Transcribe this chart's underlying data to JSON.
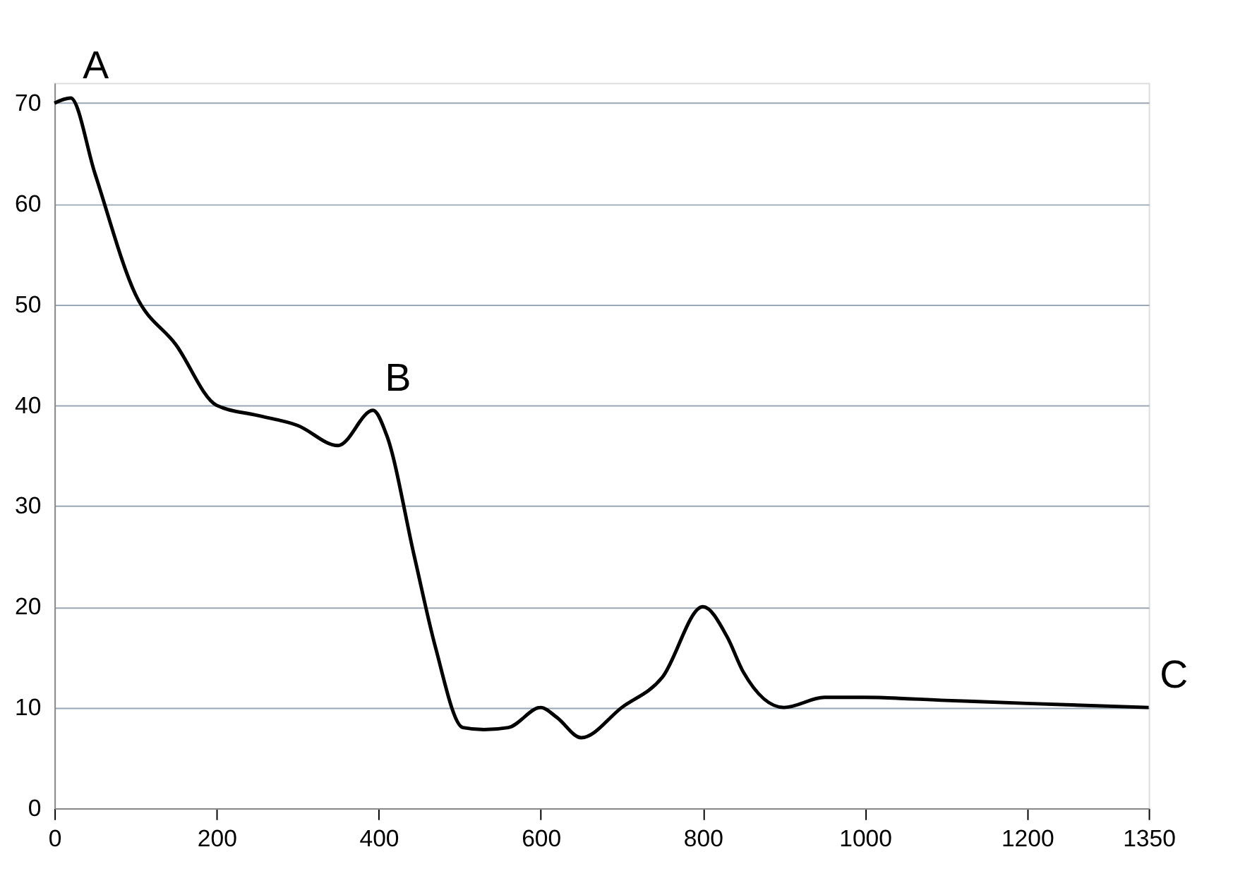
{
  "chart_data": {
    "type": "line",
    "x": [
      0,
      20,
      50,
      100,
      150,
      200,
      250,
      300,
      350,
      393,
      410,
      444,
      470,
      504,
      530,
      560,
      600,
      620,
      650,
      700,
      750,
      800,
      830,
      850,
      900,
      950,
      1000,
      1100,
      1200,
      1350
    ],
    "series": [
      {
        "color": "#000000",
        "values": [
          70,
          70.5,
          63,
          51,
          46,
          40,
          39,
          38,
          36,
          39.5,
          37,
          25,
          16,
          8,
          7.8,
          8,
          10,
          9,
          7,
          10,
          13,
          20,
          17,
          13.5,
          10,
          11,
          11,
          10.7,
          10.4,
          10
        ]
      }
    ],
    "xlim": [
      0,
      1350
    ],
    "xticks": [
      0,
      200,
      400,
      600,
      800,
      1000,
      1200,
      1350
    ],
    "ylim": [
      0,
      72
    ],
    "yticks": [
      0,
      10,
      20,
      30,
      40,
      50,
      60,
      70
    ],
    "grid": "y",
    "marker": "none",
    "line_style": "solid",
    "annotations": [
      {
        "text": "A",
        "x": 20,
        "y": 70.5
      },
      {
        "text": "B",
        "x": 393,
        "y": 39.5
      },
      {
        "text": "C",
        "x": 1350,
        "y": 10
      }
    ]
  }
}
